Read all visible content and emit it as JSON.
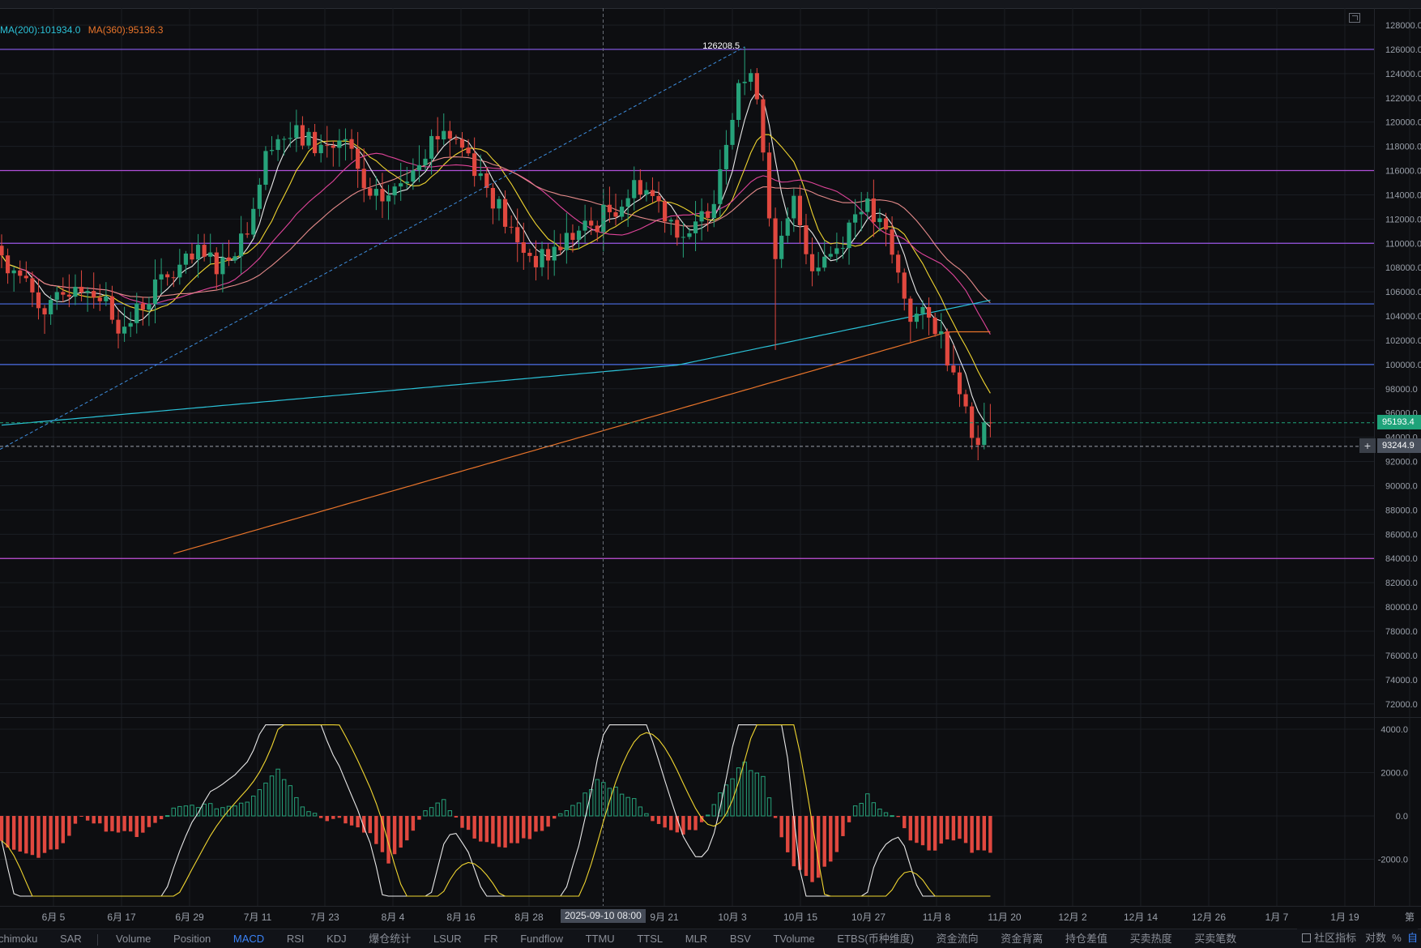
{
  "legend": {
    "ma200": "MA(200):101934.0",
    "ma360": "MA(360):95136.3",
    "ma200_color": "#2bc2d8",
    "ma360_color": "#e8742a"
  },
  "annotations": {
    "high_label": "126208.5",
    "last_price": "95193.4",
    "cursor_price": "93244.9",
    "cursor_date": "2025-09-10 08:00",
    "plus_icon": "+"
  },
  "chart_data": [
    {
      "type": "candlestick",
      "title": "",
      "yticks": [
        "128000.0",
        "126000.0",
        "124000.0",
        "122000.0",
        "120000.0",
        "118000.0",
        "116000.0",
        "114000.0",
        "112000.0",
        "110000.0",
        "108000.0",
        "106000.0",
        "104000.0",
        "102000.0",
        "100000.0",
        "98000.0",
        "96000.0",
        "94000.0",
        "92000.0",
        "90000.0",
        "88000.0",
        "86000.0",
        "84000.0",
        "82000.0",
        "80000.0",
        "78000.0",
        "76000.0",
        "74000.0",
        "72000.0"
      ],
      "ylim": [
        71000,
        129000
      ],
      "xticks": [
        "6月 5",
        "6月 17",
        "6月 29",
        "7月 11",
        "7月 23",
        "8月 4",
        "8月 16",
        "8月 28",
        "9月 21",
        "10月 3",
        "10月 15",
        "10月 27",
        "11月 8",
        "11月 20",
        "12月 2",
        "12月 14",
        "12月 26",
        "1月 7",
        "1月 19",
        "第"
      ],
      "horizontal_levels": [
        126000,
        116000,
        110000,
        105000,
        100000,
        84000
      ],
      "close_anchors": [
        [
          0,
          109000
        ],
        [
          4,
          106500
        ],
        [
          8,
          104300
        ],
        [
          12,
          107000
        ],
        [
          16,
          105800
        ],
        [
          20,
          102800
        ],
        [
          24,
          105800
        ],
        [
          28,
          107500
        ],
        [
          32,
          108800
        ],
        [
          36,
          108400
        ],
        [
          40,
          111500
        ],
        [
          44,
          118800
        ],
        [
          48,
          118800
        ],
        [
          52,
          117900
        ],
        [
          56,
          118200
        ],
        [
          60,
          113200
        ],
        [
          64,
          114200
        ],
        [
          68,
          117500
        ],
        [
          72,
          119500
        ],
        [
          76,
          117400
        ],
        [
          80,
          113900
        ],
        [
          84,
          109800
        ],
        [
          88,
          108500
        ],
        [
          92,
          110400
        ],
        [
          96,
          111400
        ],
        [
          100,
          113100
        ],
        [
          104,
          115000
        ],
        [
          108,
          112700
        ],
        [
          112,
          110000
        ],
        [
          116,
          114200
        ],
        [
          120,
          123600
        ],
        [
          123,
          122800
        ],
        [
          126,
          108000
        ],
        [
          129,
          113300
        ],
        [
          132,
          108300
        ],
        [
          136,
          109700
        ],
        [
          140,
          113500
        ],
        [
          144,
          110500
        ],
        [
          148,
          104100
        ],
        [
          152,
          103400
        ],
        [
          156,
          98600
        ],
        [
          158,
          94000
        ],
        [
          161,
          95193.4
        ]
      ],
      "last_price": 95193.4,
      "high": 126208.5,
      "moving_averages": [
        {
          "name": "MA(200)",
          "color": "#2bc2d8",
          "value": 101934.0
        },
        {
          "name": "MA(360)",
          "color": "#e8742a",
          "value": 95136.3
        }
      ]
    },
    {
      "type": "macd",
      "yticks": [
        "4000.0",
        "2000.0",
        "0.0",
        "-2000.0"
      ],
      "ylim": [
        -4000,
        4800
      ],
      "hist_anchors": [
        [
          0,
          -1200
        ],
        [
          6,
          -2000
        ],
        [
          10,
          -1300
        ],
        [
          13,
          0
        ],
        [
          17,
          -600
        ],
        [
          22,
          -900
        ],
        [
          25,
          -400
        ],
        [
          28,
          300
        ],
        [
          32,
          500
        ],
        [
          36,
          400
        ],
        [
          40,
          700
        ],
        [
          45,
          2200
        ],
        [
          49,
          500
        ],
        [
          52,
          -100
        ],
        [
          55,
          -200
        ],
        [
          60,
          -800
        ],
        [
          63,
          -2100
        ],
        [
          66,
          -1200
        ],
        [
          69,
          200
        ],
        [
          72,
          700
        ],
        [
          75,
          -600
        ],
        [
          80,
          -1400
        ],
        [
          84,
          -1300
        ],
        [
          87,
          -800
        ],
        [
          90,
          -200
        ],
        [
          94,
          700
        ],
        [
          97,
          1600
        ],
        [
          100,
          1300
        ],
        [
          103,
          700
        ],
        [
          106,
          -200
        ],
        [
          111,
          -800
        ],
        [
          114,
          -400
        ],
        [
          118,
          1500
        ],
        [
          121,
          2400
        ],
        [
          124,
          1800
        ],
        [
          126,
          -200
        ],
        [
          129,
          -2300
        ],
        [
          132,
          -3100
        ],
        [
          136,
          -1700
        ],
        [
          138,
          -400
        ],
        [
          139,
          400
        ],
        [
          141,
          1000
        ],
        [
          143,
          300
        ],
        [
          146,
          0
        ],
        [
          148,
          -1200
        ],
        [
          152,
          -1600
        ],
        [
          154,
          -1100
        ],
        [
          156,
          -1000
        ],
        [
          158,
          -1600
        ],
        [
          160,
          -1700
        ]
      ],
      "signal_colors": {
        "dif": "#e8e8e8",
        "dea": "#f0d530",
        "pos": "#26a27a",
        "neg": "#e0483f"
      }
    }
  ],
  "tabs": [
    "chimoku",
    "SAR",
    "Volume",
    "Position",
    "MACD",
    "RSI",
    "KDJ",
    "爆仓统计",
    "LSUR",
    "FR",
    "Fundflow",
    "TTMU",
    "TTSL",
    "MLR",
    "BSV",
    "TVolume",
    "ETBS(币种维度)",
    "资金流向",
    "资金背离",
    "持仓差值",
    "买卖热度",
    "买卖笔数"
  ],
  "active_tab": "MACD",
  "right_tools": {
    "community": "社区指标",
    "log": "对数",
    "percent": "%",
    "auto": "自"
  }
}
